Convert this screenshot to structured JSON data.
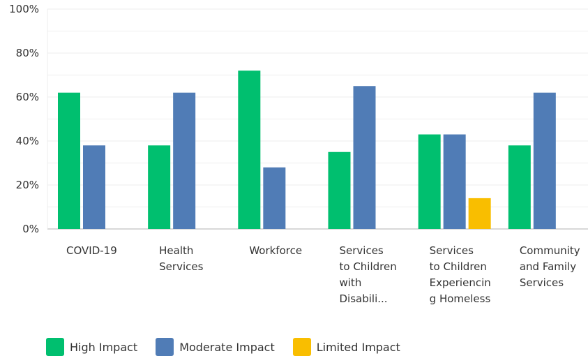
{
  "chart_data": {
    "type": "bar",
    "categories": [
      [
        "COVID-19"
      ],
      [
        "Health",
        "Services"
      ],
      [
        "Workforce"
      ],
      [
        "Services",
        "to Children",
        "with",
        "Disabili..."
      ],
      [
        "Services",
        "to Children",
        "Experiencin",
        "g Homeless"
      ],
      [
        "Community",
        "and Family",
        "Services"
      ]
    ],
    "series": [
      {
        "name": "High Impact",
        "color": "#00bf6f",
        "values": [
          62,
          38,
          72,
          35,
          43,
          38
        ]
      },
      {
        "name": "Moderate Impact",
        "color": "#507cb6",
        "values": [
          38,
          62,
          28,
          65,
          43,
          62
        ]
      },
      {
        "name": "Limited Impact",
        "color": "#f9be00",
        "values": [
          0,
          0,
          0,
          0,
          14,
          0
        ]
      }
    ],
    "ylim": [
      0,
      100
    ],
    "yticks": [
      "0%",
      "20%",
      "40%",
      "60%",
      "80%",
      "100%"
    ],
    "legend": "bottom-left",
    "grid": true
  }
}
